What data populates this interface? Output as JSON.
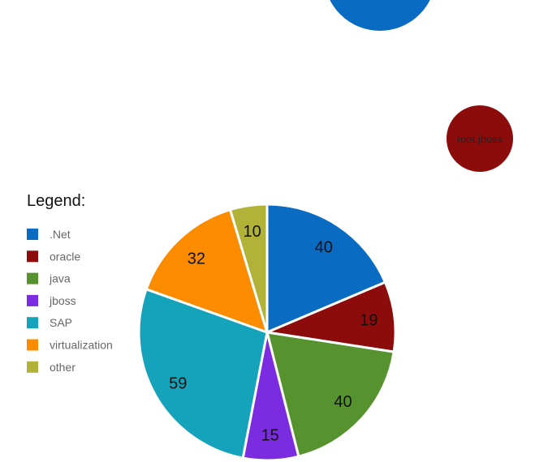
{
  "chart_data": [
    {
      "type": "pie",
      "legend_title": "Legend:",
      "legend_position": "left",
      "categories": [
        ".Net",
        "oracle",
        "java",
        "jboss",
        "SAP",
        "virtualization",
        "other"
      ],
      "values": [
        40,
        19,
        40,
        15,
        59,
        32,
        10
      ],
      "data_labels": [
        "40",
        "19",
        "40",
        "15",
        "59",
        "32",
        "10"
      ],
      "colors": [
        "#0a6bc2",
        "#8c0c0c",
        "#56922e",
        "#7b2be0",
        "#14a3ba",
        "#fb8c00",
        "#b1b237"
      ]
    },
    {
      "type": "scatter",
      "points": [
        {
          "label": "",
          "color": "#0a6bc2"
        },
        {
          "label": "root.jboss",
          "color": "#8c0c0c"
        }
      ]
    }
  ]
}
